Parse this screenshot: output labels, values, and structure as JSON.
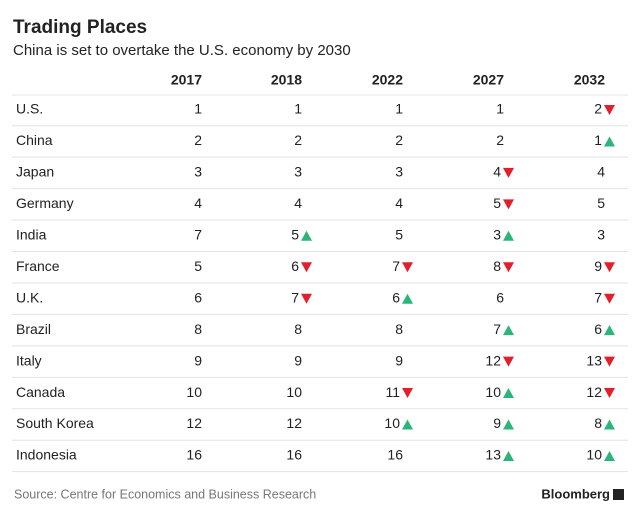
{
  "header": {
    "title": "Trading Places",
    "subtitle": "China is set to overtake the U.S. economy by 2030"
  },
  "table": {
    "columns": [
      "2017",
      "2018",
      "2022",
      "2027",
      "2032"
    ],
    "rows": [
      {
        "label": "U.S.",
        "values": [
          1,
          1,
          1,
          1,
          2
        ],
        "trends": [
          null,
          null,
          null,
          null,
          "down"
        ]
      },
      {
        "label": "China",
        "values": [
          2,
          2,
          2,
          2,
          1
        ],
        "trends": [
          null,
          null,
          null,
          null,
          "up"
        ]
      },
      {
        "label": "Japan",
        "values": [
          3,
          3,
          3,
          4,
          4
        ],
        "trends": [
          null,
          null,
          null,
          "down",
          null
        ]
      },
      {
        "label": "Germany",
        "values": [
          4,
          4,
          4,
          5,
          5
        ],
        "trends": [
          null,
          null,
          null,
          "down",
          null
        ]
      },
      {
        "label": "India",
        "values": [
          7,
          5,
          5,
          3,
          3
        ],
        "trends": [
          null,
          "up",
          null,
          "up",
          null
        ]
      },
      {
        "label": "France",
        "values": [
          5,
          6,
          7,
          8,
          9
        ],
        "trends": [
          null,
          "down",
          "down",
          "down",
          "down"
        ]
      },
      {
        "label": "U.K.",
        "values": [
          6,
          7,
          6,
          6,
          7
        ],
        "trends": [
          null,
          "down",
          "up",
          null,
          "down"
        ]
      },
      {
        "label": "Brazil",
        "values": [
          8,
          8,
          8,
          7,
          6
        ],
        "trends": [
          null,
          null,
          null,
          "up",
          "up"
        ]
      },
      {
        "label": "Italy",
        "values": [
          9,
          9,
          9,
          12,
          13
        ],
        "trends": [
          null,
          null,
          null,
          "down",
          "down"
        ]
      },
      {
        "label": "Canada",
        "values": [
          10,
          10,
          11,
          10,
          12
        ],
        "trends": [
          null,
          null,
          "down",
          "up",
          "down"
        ]
      },
      {
        "label": "South Korea",
        "values": [
          12,
          12,
          10,
          9,
          8
        ],
        "trends": [
          null,
          null,
          "up",
          "up",
          "up"
        ]
      },
      {
        "label": "Indonesia",
        "values": [
          16,
          16,
          16,
          13,
          10
        ],
        "trends": [
          null,
          null,
          null,
          "up",
          "up"
        ]
      }
    ],
    "trend_colors": {
      "up": "#2bb57b",
      "down": "#e2202c"
    }
  },
  "footer": {
    "source": "Source: Centre for Economics and Business Research",
    "brand": "Bloomberg"
  }
}
